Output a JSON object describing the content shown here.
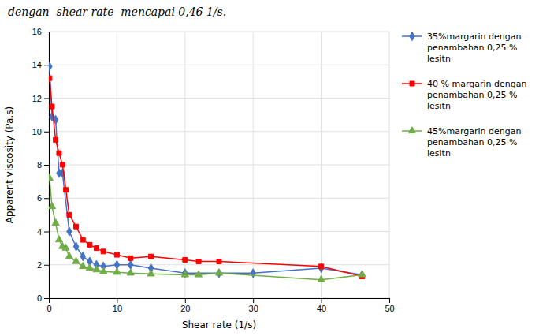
{
  "chart_data": {
    "type": "line",
    "title": "dengan  shear rate  mencapai 0,46 1/s.",
    "x_label": "Shear rate (1/s)",
    "y_label": "Apparent viscosity (Pa.s)",
    "xlim": [
      0,
      50
    ],
    "ylim": [
      0,
      16
    ],
    "xticks": [
      0,
      10,
      20,
      30,
      40,
      50
    ],
    "yticks": [
      0,
      2,
      4,
      6,
      8,
      10,
      12,
      14,
      16
    ],
    "grid": true,
    "legend": "right",
    "series": [
      {
        "name": "35%margarin dengan\npenambahan 0,25 %\nlesitn",
        "color": "#4472C4",
        "marker": "diamond",
        "x": [
          0.1,
          0.46,
          1.0,
          1.5,
          2.0,
          3.0,
          4.0,
          5.0,
          6.0,
          7.0,
          8.0,
          10.0,
          12.0,
          15.0,
          20.0,
          25.0,
          30.0,
          40.0,
          46.0
        ],
        "values": [
          13.9,
          10.9,
          10.7,
          7.5,
          7.5,
          4.0,
          3.1,
          2.5,
          2.2,
          2.0,
          1.9,
          2.0,
          2.0,
          1.8,
          1.5,
          1.5,
          1.5,
          1.8,
          1.4
        ]
      },
      {
        "name": "40 % margarin dengan\npenambahan 0,25 %\nlesitn",
        "color": "#FF0000",
        "marker": "square",
        "x": [
          0.1,
          0.46,
          1.0,
          1.5,
          2.0,
          2.5,
          3.0,
          4.0,
          5.0,
          6.0,
          7.0,
          8.0,
          10.0,
          12.0,
          15.0,
          20.0,
          22.0,
          25.0,
          40.0,
          46.0
        ],
        "values": [
          13.2,
          11.5,
          9.5,
          8.7,
          8.0,
          6.5,
          5.0,
          4.3,
          3.5,
          3.2,
          3.0,
          2.8,
          2.6,
          2.4,
          2.5,
          2.3,
          2.2,
          2.2,
          1.9,
          1.3
        ]
      },
      {
        "name": "45%margarin dengan\npenambahan 0,25 %\nlesitn",
        "color": "#70AD47",
        "marker": "triangle",
        "x": [
          0.1,
          0.46,
          1.0,
          1.5,
          2.0,
          2.5,
          3.0,
          4.0,
          5.0,
          6.0,
          7.0,
          8.0,
          10.0,
          12.0,
          15.0,
          20.0,
          22.0,
          25.0,
          40.0,
          46.0
        ],
        "values": [
          7.2,
          5.5,
          4.5,
          3.5,
          3.1,
          3.0,
          2.5,
          2.2,
          1.9,
          1.8,
          1.7,
          1.6,
          1.55,
          1.5,
          1.45,
          1.4,
          1.4,
          1.5,
          1.1,
          1.4
        ]
      }
    ]
  }
}
